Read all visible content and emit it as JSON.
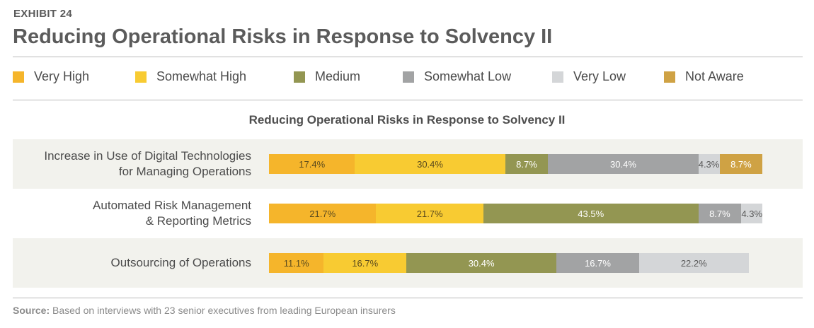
{
  "exhibit_label": "EXHIBIT 24",
  "title": "Reducing Operational Risks in Response to Solvency II",
  "source": {
    "label": "Source:",
    "text": "Based on interviews with 23 senior executives from leading European insurers"
  },
  "legend": [
    {
      "label": "Very High",
      "color": "#f5b52b"
    },
    {
      "label": "Somewhat High",
      "color": "#f8cb32"
    },
    {
      "label": "Medium",
      "color": "#939652"
    },
    {
      "label": "Somewhat Low",
      "color": "#a2a3a4"
    },
    {
      "label": "Very Low",
      "color": "#d4d6d8"
    },
    {
      "label": "Not Aware",
      "color": "#cfa244"
    }
  ],
  "chart_data": {
    "type": "bar",
    "orientation": "horizontal-stacked-percent",
    "title": "Reducing Operational Risks in Response to Solvency II",
    "categories": [
      [
        "Increase in Use of Digital Technologies",
        "for Managing Operations"
      ],
      [
        "Automated Risk Management",
        "& Reporting Metrics"
      ],
      [
        "Outsourcing of Operations"
      ]
    ],
    "series": [
      {
        "name": "Very High",
        "values": [
          17.4,
          21.7,
          11.1
        ],
        "labels": [
          "17.4%",
          "21.7%",
          "11.1%"
        ]
      },
      {
        "name": "Somewhat High",
        "values": [
          30.4,
          21.7,
          16.7
        ],
        "labels": [
          "30.4%",
          "21.7%",
          "16.7%"
        ]
      },
      {
        "name": "Medium",
        "values": [
          8.7,
          43.5,
          30.4
        ],
        "labels": [
          "8.7%",
          "43.5%",
          "30.4%"
        ]
      },
      {
        "name": "Somewhat Low",
        "values": [
          30.4,
          8.7,
          16.7
        ],
        "labels": [
          "30.4%",
          "8.7%",
          "16.7%"
        ]
      },
      {
        "name": "Very Low",
        "values": [
          4.3,
          4.3,
          22.2
        ],
        "labels": [
          "4.3%",
          "4.3%",
          "22.2%"
        ]
      },
      {
        "name": "Not Aware",
        "values": [
          8.7,
          0,
          0
        ],
        "labels": [
          "8.7%",
          "",
          ""
        ]
      }
    ],
    "xlim": [
      0,
      100
    ],
    "grid": false,
    "legend_position": "top"
  }
}
